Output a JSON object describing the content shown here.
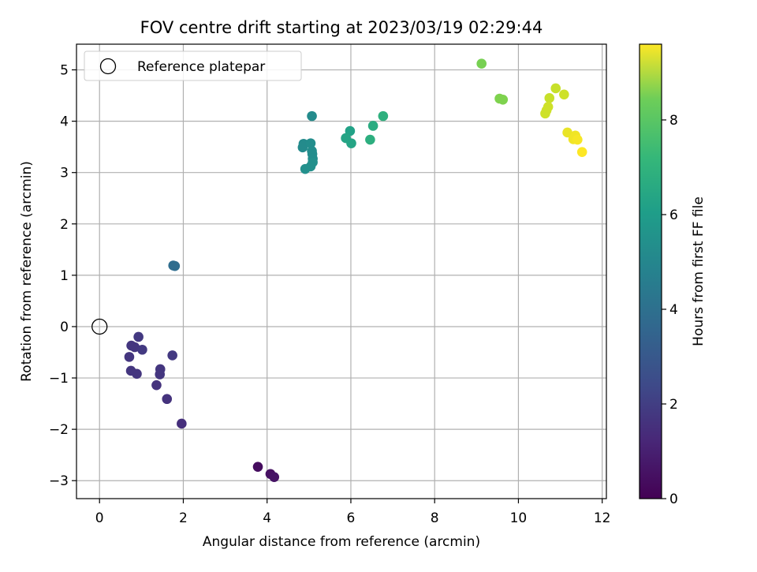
{
  "chart_data": {
    "type": "scatter",
    "title": "FOV centre drift starting at 2023/03/19 02:29:44",
    "xlabel": "Angular distance from reference (arcmin)",
    "ylabel": "Rotation from reference (arcmin)",
    "xlim": [
      -0.55,
      12.1
    ],
    "ylim": [
      -3.35,
      5.5
    ],
    "xticks": [
      0,
      2,
      4,
      6,
      8,
      10,
      12
    ],
    "yticks": [
      -3,
      -2,
      -1,
      0,
      1,
      2,
      3,
      4,
      5
    ],
    "grid": true,
    "legend": {
      "placement": "upper-left",
      "entries": [
        "Reference platepar"
      ]
    },
    "reference_point": {
      "label": "Reference platepar",
      "x": 0,
      "y": 0,
      "marker": "open-circle"
    },
    "colorbar": {
      "label": "Hours from first FF file",
      "colormap": "viridis",
      "range": [
        0,
        9.6
      ],
      "ticks": [
        0,
        2,
        4,
        6,
        8
      ]
    },
    "points": [
      {
        "x": 3.78,
        "y": -2.73,
        "hours": 0.3
      },
      {
        "x": 4.08,
        "y": -2.87,
        "hours": 0.4
      },
      {
        "x": 4.17,
        "y": -2.93,
        "hours": 0.5
      },
      {
        "x": 1.96,
        "y": -1.89,
        "hours": 1.3
      },
      {
        "x": 1.61,
        "y": -1.41,
        "hours": 1.4
      },
      {
        "x": 1.36,
        "y": -1.14,
        "hours": 1.4
      },
      {
        "x": 1.45,
        "y": -0.83,
        "hours": 1.5
      },
      {
        "x": 1.44,
        "y": -0.93,
        "hours": 1.5
      },
      {
        "x": 0.89,
        "y": -0.92,
        "hours": 1.5
      },
      {
        "x": 0.75,
        "y": -0.86,
        "hours": 1.5
      },
      {
        "x": 0.71,
        "y": -0.59,
        "hours": 1.5
      },
      {
        "x": 0.76,
        "y": -0.37,
        "hours": 1.5
      },
      {
        "x": 0.84,
        "y": -0.4,
        "hours": 1.5
      },
      {
        "x": 1.02,
        "y": -0.45,
        "hours": 1.6
      },
      {
        "x": 0.93,
        "y": -0.2,
        "hours": 1.6
      },
      {
        "x": 1.74,
        "y": -0.56,
        "hours": 1.6
      },
      {
        "x": 1.76,
        "y": 1.19,
        "hours": 3.4
      },
      {
        "x": 1.8,
        "y": 1.18,
        "hours": 3.4
      },
      {
        "x": 5.07,
        "y": 4.1,
        "hours": 4.6
      },
      {
        "x": 4.87,
        "y": 3.56,
        "hours": 4.6
      },
      {
        "x": 4.85,
        "y": 3.49,
        "hours": 4.6
      },
      {
        "x": 5.04,
        "y": 3.57,
        "hours": 4.7
      },
      {
        "x": 5.07,
        "y": 3.42,
        "hours": 4.7
      },
      {
        "x": 5.08,
        "y": 3.36,
        "hours": 4.7
      },
      {
        "x": 5.09,
        "y": 3.27,
        "hours": 4.7
      },
      {
        "x": 5.09,
        "y": 3.2,
        "hours": 4.8
      },
      {
        "x": 5.04,
        "y": 3.12,
        "hours": 4.8
      },
      {
        "x": 4.91,
        "y": 3.07,
        "hours": 4.8
      },
      {
        "x": 5.98,
        "y": 3.81,
        "hours": 5.5
      },
      {
        "x": 5.88,
        "y": 3.67,
        "hours": 5.6
      },
      {
        "x": 6.01,
        "y": 3.57,
        "hours": 5.6
      },
      {
        "x": 6.53,
        "y": 3.91,
        "hours": 5.9
      },
      {
        "x": 6.46,
        "y": 3.64,
        "hours": 6.0
      },
      {
        "x": 6.77,
        "y": 4.1,
        "hours": 6.1
      },
      {
        "x": 9.12,
        "y": 5.12,
        "hours": 7.6
      },
      {
        "x": 9.55,
        "y": 4.44,
        "hours": 7.7
      },
      {
        "x": 9.63,
        "y": 4.42,
        "hours": 7.7
      },
      {
        "x": 10.89,
        "y": 4.64,
        "hours": 8.8
      },
      {
        "x": 10.74,
        "y": 4.45,
        "hours": 8.8
      },
      {
        "x": 11.09,
        "y": 4.52,
        "hours": 8.9
      },
      {
        "x": 10.71,
        "y": 4.28,
        "hours": 8.9
      },
      {
        "x": 10.67,
        "y": 4.21,
        "hours": 8.9
      },
      {
        "x": 10.64,
        "y": 4.15,
        "hours": 8.9
      },
      {
        "x": 11.17,
        "y": 3.78,
        "hours": 9.3
      },
      {
        "x": 11.36,
        "y": 3.72,
        "hours": 9.4
      },
      {
        "x": 11.31,
        "y": 3.65,
        "hours": 9.4
      },
      {
        "x": 11.41,
        "y": 3.64,
        "hours": 9.5
      },
      {
        "x": 11.52,
        "y": 3.4,
        "hours": 9.6
      }
    ]
  }
}
